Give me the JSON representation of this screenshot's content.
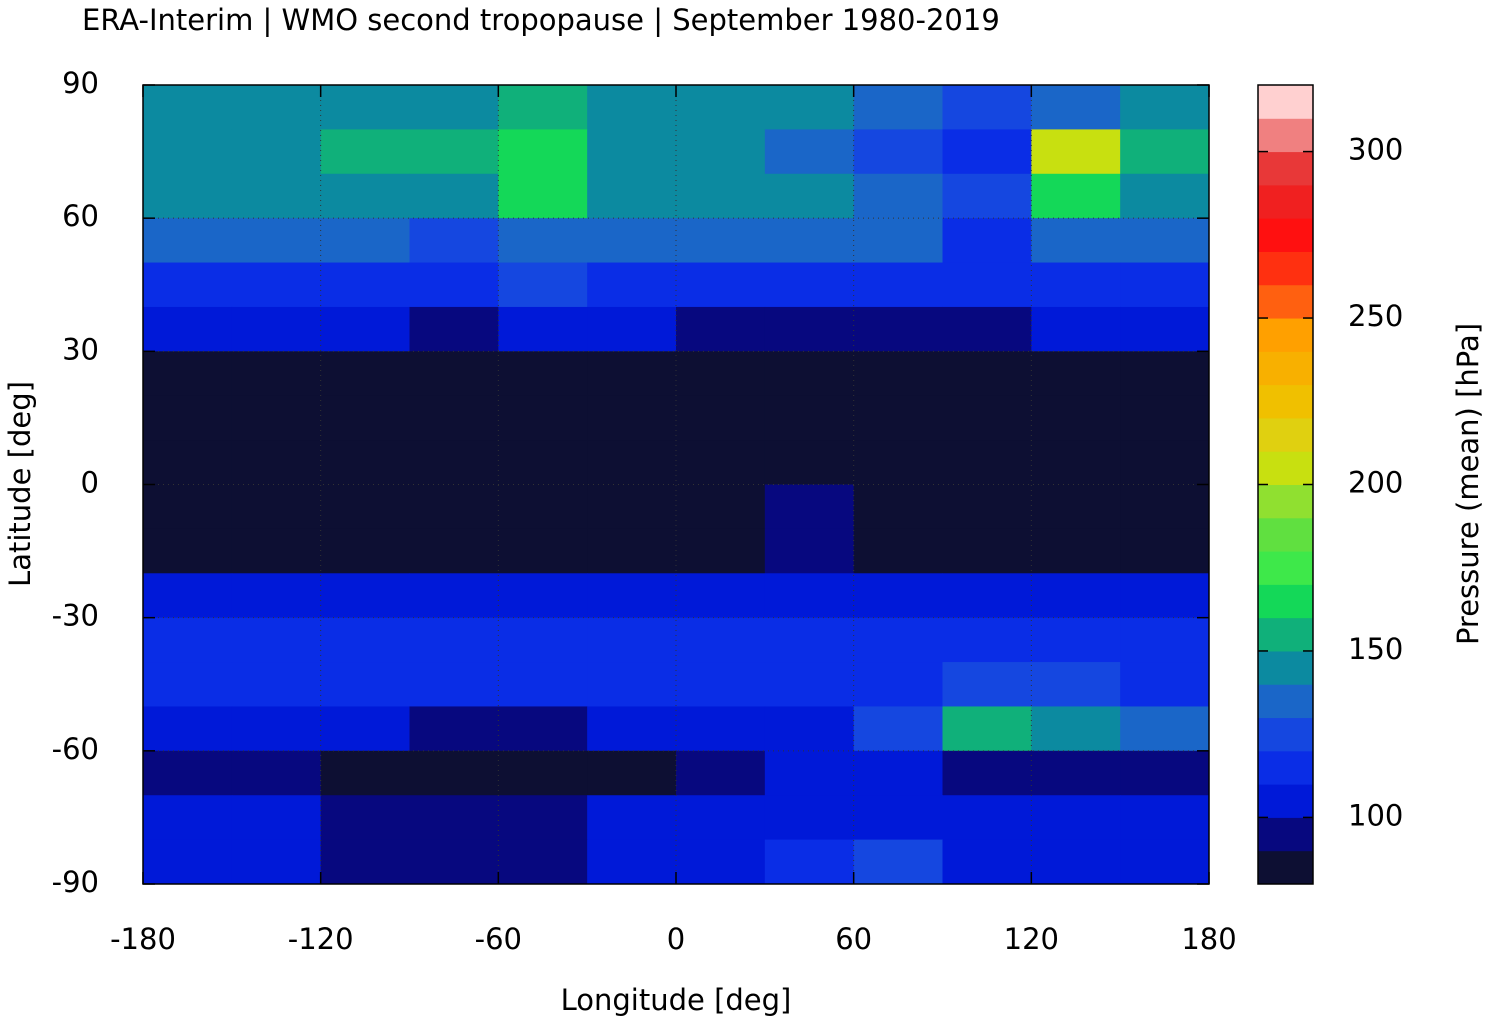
{
  "chart_data": {
    "type": "heatmap",
    "title": "ERA-Interim | WMO second tropopause | September 1980-2019",
    "x_label": "Longitude [deg]",
    "y_label": "Latitude [deg]",
    "colorbar_label": "Pressure (mean) [hPa]",
    "x": [
      -165,
      -135,
      -105,
      -75,
      -45,
      -15,
      15,
      45,
      75,
      105,
      135,
      165
    ],
    "y": [
      85,
      75,
      65,
      55,
      45,
      35,
      25,
      15,
      5,
      -5,
      -15,
      -25,
      -35,
      -45,
      -55,
      -65,
      -75,
      -85
    ],
    "z": [
      [
        140,
        140,
        140,
        145,
        150,
        140,
        140,
        140,
        130,
        125,
        135,
        140
      ],
      [
        140,
        145,
        150,
        155,
        165,
        145,
        140,
        130,
        125,
        110,
        200,
        150
      ],
      [
        140,
        140,
        145,
        140,
        160,
        140,
        140,
        140,
        135,
        120,
        160,
        145
      ],
      [
        130,
        130,
        130,
        125,
        130,
        130,
        130,
        130,
        130,
        115,
        130,
        130
      ],
      [
        115,
        118,
        115,
        115,
        120,
        118,
        115,
        115,
        112,
        110,
        112,
        115
      ],
      [
        105,
        105,
        100,
        98,
        100,
        105,
        95,
        90,
        90,
        95,
        100,
        105
      ],
      [
        88,
        88,
        86,
        86,
        86,
        86,
        86,
        86,
        86,
        86,
        86,
        88
      ],
      [
        85,
        85,
        85,
        85,
        85,
        85,
        85,
        85,
        85,
        85,
        85,
        85
      ],
      [
        85,
        85,
        85,
        85,
        85,
        85,
        85,
        88,
        85,
        85,
        85,
        85
      ],
      [
        85,
        85,
        85,
        85,
        85,
        85,
        85,
        92,
        85,
        85,
        85,
        85
      ],
      [
        88,
        88,
        88,
        86,
        88,
        88,
        88,
        92,
        88,
        88,
        88,
        88
      ],
      [
        105,
        105,
        105,
        105,
        105,
        105,
        105,
        105,
        105,
        105,
        105,
        105
      ],
      [
        112,
        112,
        112,
        112,
        112,
        115,
        115,
        115,
        112,
        110,
        110,
        112
      ],
      [
        115,
        115,
        115,
        115,
        112,
        112,
        112,
        112,
        115,
        125,
        125,
        115
      ],
      [
        108,
        105,
        100,
        95,
        95,
        100,
        105,
        108,
        125,
        150,
        145,
        130
      ],
      [
        92,
        90,
        88,
        85,
        85,
        88,
        95,
        100,
        100,
        98,
        95,
        95
      ],
      [
        105,
        100,
        95,
        90,
        95,
        105,
        105,
        105,
        105,
        105,
        105,
        105
      ],
      [
        105,
        105,
        95,
        90,
        95,
        105,
        105,
        110,
        120,
        105,
        105,
        105
      ]
    ],
    "xlim": [
      -180,
      180
    ],
    "ylim": [
      -90,
      90
    ],
    "xticks": [
      -180,
      -120,
      -60,
      0,
      60,
      120,
      180
    ],
    "yticks": [
      -90,
      -60,
      -30,
      0,
      30,
      60,
      90
    ],
    "grid": true,
    "colorbar": {
      "levels": [
        80,
        90,
        100,
        110,
        120,
        130,
        140,
        150,
        160,
        170,
        180,
        190,
        200,
        210,
        220,
        230,
        240,
        250,
        260,
        270,
        280,
        290,
        300,
        310,
        320
      ],
      "colors": [
        "#0d0f33",
        "#07087f",
        "#0019d8",
        "#0a2de6",
        "#1547e0",
        "#1a66c8",
        "#0c8aa0",
        "#10b07a",
        "#14d858",
        "#3ee84a",
        "#60e040",
        "#90e030",
        "#c8e010",
        "#e0d010",
        "#f0c000",
        "#f8b000",
        "#ffa000",
        "#ff6010",
        "#ff3010",
        "#ff1010",
        "#f02020",
        "#e83838",
        "#f08080",
        "#ffd0d0"
      ],
      "ticks": [
        100,
        150,
        200,
        250,
        300
      ]
    }
  }
}
